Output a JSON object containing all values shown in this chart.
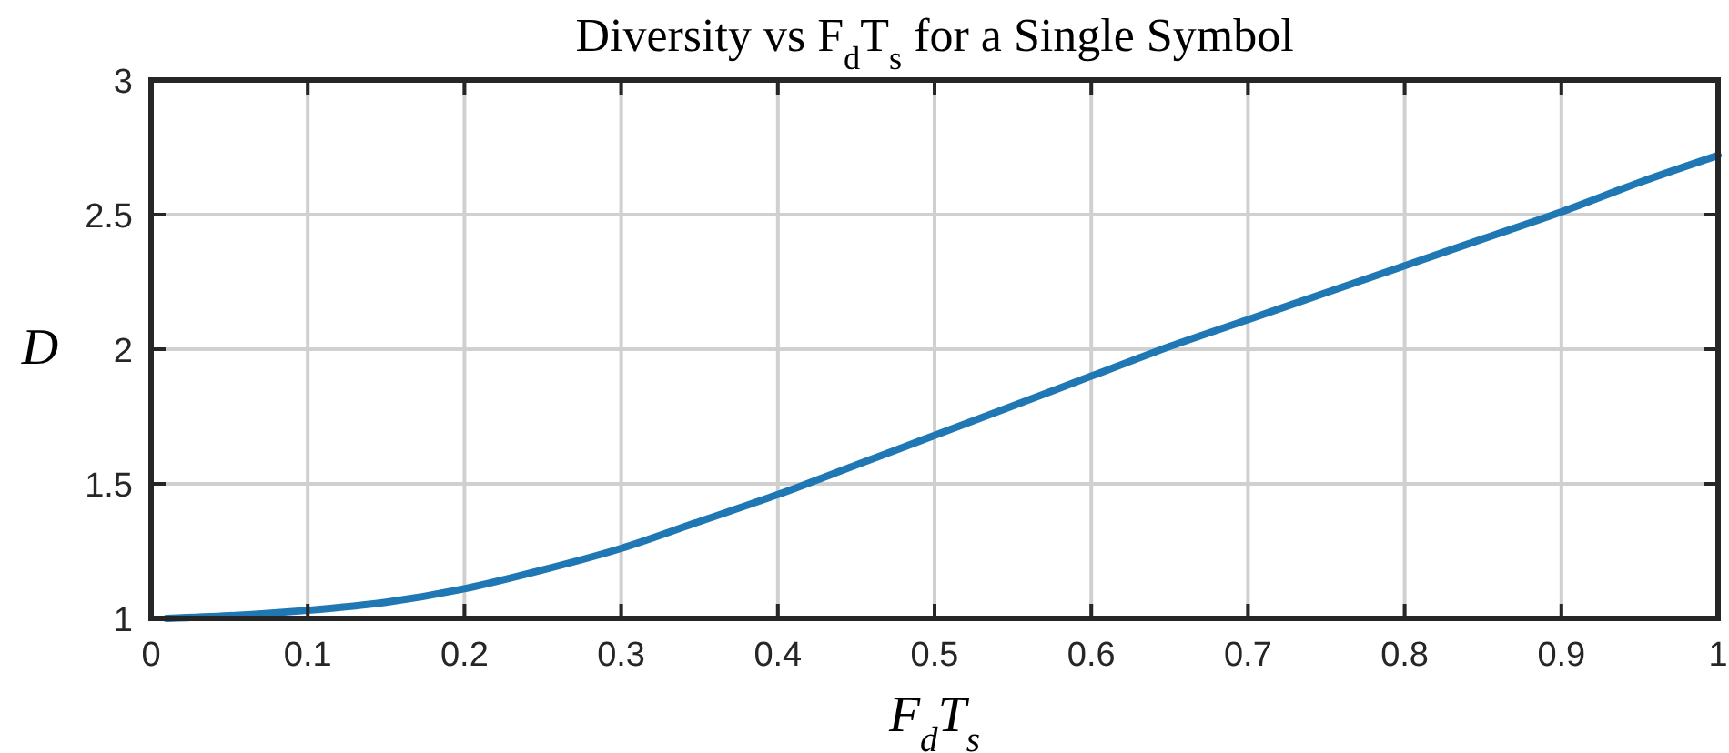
{
  "chart_data": {
    "type": "line",
    "title": "Diversity vs F$_{d}$T$_{s}$ for a Single Symbol",
    "xlabel": "F$_{d}$T$_{s}$",
    "ylabel": "D",
    "series": [
      {
        "color": "#1f77b4",
        "x": [
          0.01,
          0.05,
          0.1,
          0.15,
          0.2,
          0.25,
          0.3,
          0.35,
          0.4,
          0.45,
          0.5,
          0.55,
          0.6,
          0.65,
          0.7,
          0.75,
          0.8,
          0.85,
          0.9,
          0.95,
          1
        ],
        "values": [
          1.0,
          1.01,
          1.03,
          1.06,
          1.11,
          1.18,
          1.26,
          1.36,
          1.46,
          1.57,
          1.68,
          1.79,
          1.9,
          2.01,
          2.11,
          2.21,
          2.31,
          2.41,
          2.51,
          2.62,
          2.72
        ]
      }
    ],
    "xlim": [
      0,
      1
    ],
    "ylim": [
      1,
      3
    ],
    "xticks": [
      0,
      0.1,
      0.2,
      0.3,
      0.4,
      0.5,
      0.6,
      0.7,
      0.8,
      0.9,
      1
    ],
    "yticks": [
      1,
      1.5,
      2,
      2.5,
      3
    ],
    "grid": true,
    "line_style": "solid"
  }
}
